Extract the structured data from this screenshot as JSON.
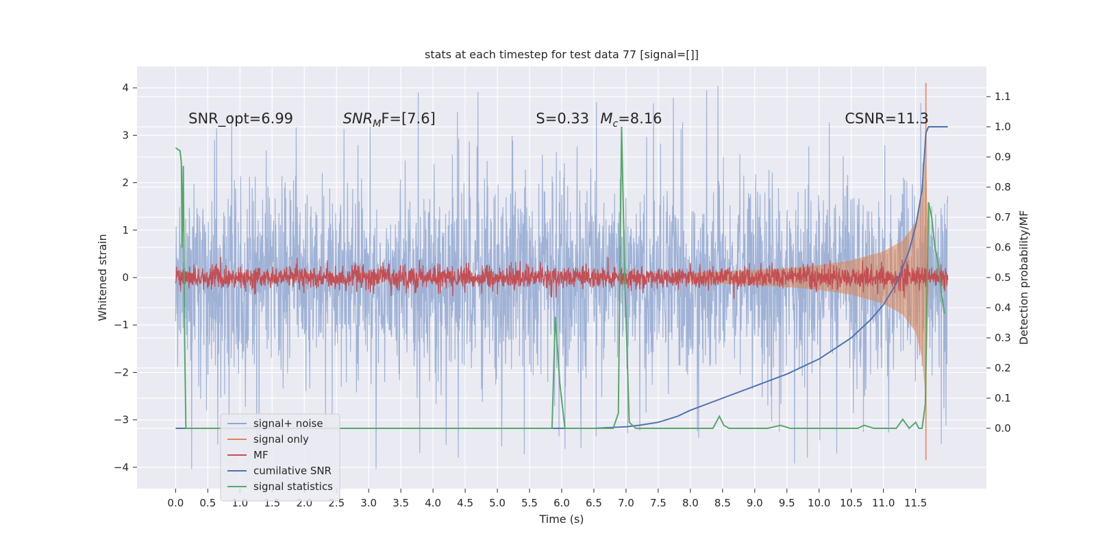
{
  "chart_data": {
    "type": "line",
    "title": "stats at each timestep for test data 77 [signal=[]]",
    "xlabel": "Time (s)",
    "ylabel_left": "Whitened strain",
    "ylabel_right": "Detection probability/MF",
    "xlim": [
      -0.6,
      12.6
    ],
    "ylim_left": [
      -4.45,
      4.45
    ],
    "ylim_right": [
      -0.2,
      1.2
    ],
    "x_ticks": [
      "0.0",
      "0.5",
      "1.0",
      "1.5",
      "2.0",
      "2.5",
      "3.0",
      "3.5",
      "4.0",
      "4.5",
      "5.0",
      "5.5",
      "6.0",
      "6.5",
      "7.0",
      "7.5",
      "8.0",
      "8.5",
      "9.0",
      "9.5",
      "10.0",
      "10.5",
      "11.0",
      "11.5"
    ],
    "y_ticks_left": [
      "4",
      "3",
      "2",
      "1",
      "0",
      "−1",
      "−2",
      "−3",
      "−4"
    ],
    "y_ticks_right": [
      "1.1",
      "1.0",
      "0.9",
      "0.8",
      "0.7",
      "0.6",
      "0.5",
      "0.4",
      "0.3",
      "0.2",
      "0.1",
      "0.0"
    ],
    "grid": true,
    "legend_position": "lower-left",
    "annotations": [
      {
        "text": "SNR_opt=6.99",
        "x": 0.2
      },
      {
        "text": "SNR",
        "sub": "M",
        "after": "F=[7.6]",
        "italic": true,
        "x": 2.6
      },
      {
        "text": "S=0.33",
        "x": 5.6
      },
      {
        "text": "M",
        "sub": "c",
        "after": "=8.16",
        "x": 6.6
      },
      {
        "text": "CSNR=11.3",
        "x": 10.4
      }
    ],
    "series": [
      {
        "name": "signal+ noise",
        "axis": "left",
        "color": "#92a8d1",
        "band": {
          "x": [
            0.0,
            12.0
          ],
          "typical_abs": 1.3,
          "peak_abs": 4.1
        }
      },
      {
        "name": "signal only",
        "axis": "left",
        "color": "#dd8452",
        "envelope": {
          "x": [
            8.0,
            8.5,
            9.0,
            9.5,
            10.0,
            10.5,
            11.0,
            11.3,
            11.5,
            11.6,
            11.66,
            11.7
          ],
          "amp": [
            0.1,
            0.13,
            0.16,
            0.2,
            0.26,
            0.36,
            0.55,
            0.78,
            1.15,
            1.7,
            2.6,
            0.3
          ]
        },
        "spike": {
          "x": 11.66,
          "y_max": 4.1,
          "y_min": -3.85
        }
      },
      {
        "name": "MF",
        "axis": "left",
        "color": "#c44e52",
        "band": {
          "x": [
            0.0,
            12.0
          ],
          "typical_abs": 0.15,
          "peak_abs": 0.45
        }
      },
      {
        "name": "cumilative SNR",
        "axis": "right",
        "color": "#4c72b0",
        "x": [
          0.0,
          5.5,
          6.0,
          6.5,
          7.0,
          7.2,
          7.5,
          7.8,
          8.0,
          8.5,
          9.0,
          9.5,
          10.0,
          10.5,
          10.8,
          11.0,
          11.2,
          11.4,
          11.5,
          11.6,
          11.66,
          11.7,
          12.0
        ],
        "y": [
          0.0,
          0.0,
          0.0,
          0.0,
          0.005,
          0.01,
          0.02,
          0.04,
          0.06,
          0.1,
          0.14,
          0.18,
          0.23,
          0.3,
          0.36,
          0.41,
          0.48,
          0.59,
          0.67,
          0.79,
          0.98,
          1.0,
          1.0
        ]
      },
      {
        "name": "signal statistics",
        "axis": "right",
        "color": "#55a868",
        "x": [
          0.0,
          0.07,
          0.09,
          0.1,
          0.12,
          0.14,
          0.16,
          0.2,
          5.85,
          5.9,
          5.97,
          6.05,
          6.8,
          6.88,
          6.93,
          6.98,
          7.05,
          7.15,
          8.35,
          8.45,
          8.52,
          8.6,
          9.2,
          9.4,
          9.55,
          10.6,
          10.7,
          10.85,
          11.2,
          11.3,
          11.4,
          11.5,
          11.55,
          11.6,
          11.65,
          11.7,
          11.75,
          11.8,
          11.85,
          11.9,
          11.95
        ],
        "y": [
          0.93,
          0.92,
          0.88,
          0.6,
          0.87,
          0.3,
          0.0,
          0.0,
          0.0,
          0.37,
          0.15,
          0.0,
          0.0,
          0.05,
          1.0,
          0.5,
          0.02,
          0.0,
          0.0,
          0.04,
          0.01,
          0.0,
          0.0,
          0.01,
          0.0,
          0.0,
          0.01,
          0.0,
          0.0,
          0.03,
          0.0,
          0.02,
          0.0,
          0.0,
          0.08,
          0.75,
          0.7,
          0.6,
          0.55,
          0.45,
          0.38
        ]
      }
    ]
  }
}
